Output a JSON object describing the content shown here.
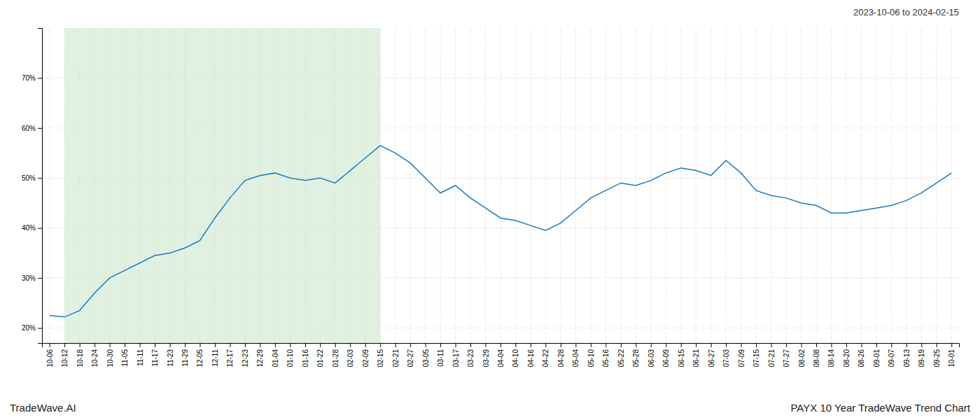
{
  "chart_data": {
    "type": "line",
    "title": "PAYX 10 Year TradeWave Trend Chart",
    "subtitle": "2023-10-06 to 2024-02-15",
    "annotations": [
      "TradeWave.AI"
    ],
    "categories": [
      "10-06",
      "10-12",
      "10-18",
      "10-24",
      "10-30",
      "11-05",
      "11-11",
      "11-17",
      "11-23",
      "11-29",
      "12-05",
      "12-11",
      "12-17",
      "12-23",
      "12-29",
      "01-04",
      "01-10",
      "01-16",
      "01-22",
      "01-28",
      "02-03",
      "02-09",
      "02-15",
      "02-21",
      "02-27",
      "03-05",
      "03-11",
      "03-17",
      "03-23",
      "03-29",
      "04-04",
      "04-10",
      "04-16",
      "04-22",
      "04-28",
      "05-04",
      "05-10",
      "05-16",
      "05-22",
      "05-28",
      "06-03",
      "06-09",
      "06-15",
      "06-21",
      "06-27",
      "07-03",
      "07-09",
      "07-15",
      "07-21",
      "07-27",
      "08-02",
      "08-08",
      "08-14",
      "08-20",
      "08-26",
      "09-01",
      "09-07",
      "09-13",
      "09-19",
      "09-25",
      "10-01"
    ],
    "values": [
      22.5,
      22.2,
      23.5,
      27.0,
      30.0,
      31.5,
      33.0,
      34.5,
      35.0,
      36.0,
      37.5,
      42.0,
      46.0,
      49.5,
      50.5,
      51.0,
      50.0,
      49.5,
      50.0,
      49.0,
      51.5,
      54.0,
      56.5,
      55.0,
      53.0,
      50.0,
      47.0,
      48.5,
      46.0,
      44.0,
      42.0,
      41.5,
      40.5,
      39.5,
      41.0,
      43.5,
      46.0,
      47.5,
      49.0,
      48.5,
      49.5,
      51.0,
      52.0,
      51.5,
      50.5,
      53.5,
      51.0,
      47.5,
      46.5,
      46.0,
      45.0,
      44.5,
      43.0,
      43.0,
      43.5,
      44.0,
      44.5,
      45.5,
      47.0,
      49.0,
      51.0
    ],
    "color": "#1a7abf",
    "shade": {
      "from": "10-12",
      "to": "02-15",
      "color": "#c8e6c9"
    },
    "ylim": [
      17,
      80
    ],
    "yticks": [
      {
        "value": 20,
        "label": "20%"
      },
      {
        "value": 30,
        "label": "30%"
      },
      {
        "value": 40,
        "label": "40%"
      },
      {
        "value": 50,
        "label": "50%"
      },
      {
        "value": 60,
        "label": "60%"
      },
      {
        "value": 70,
        "label": "70%"
      }
    ],
    "grid": true
  }
}
